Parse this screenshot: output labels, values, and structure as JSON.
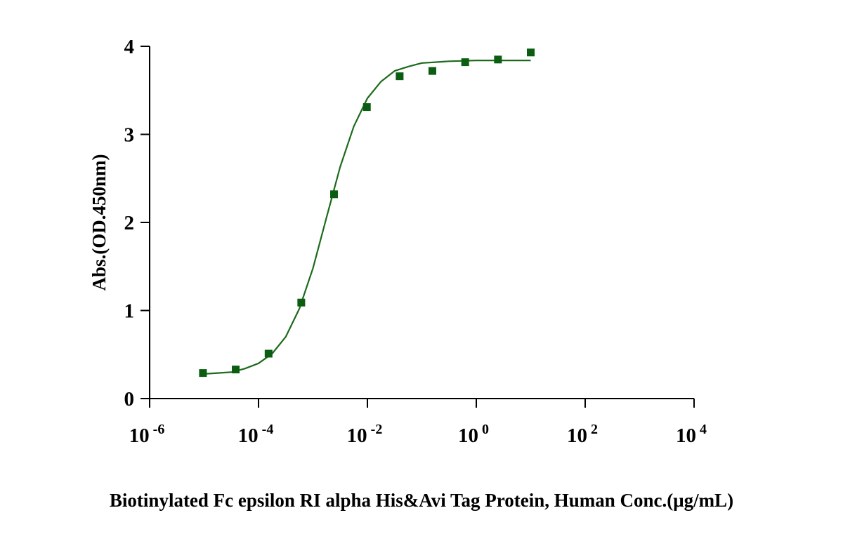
{
  "chart_data": {
    "type": "scatter",
    "x_label": "Biotinylated Fc epsilon RI alpha His&Avi Tag Protein, Human Conc.(μg/mL)",
    "y_label": "Abs.(OD.450nm)",
    "log_x": true,
    "xlim": [
      1e-06,
      10000
    ],
    "xticks": [
      {
        "value": 1e-06,
        "label": "10-6"
      },
      {
        "value": 0.0001,
        "label": "10-4"
      },
      {
        "value": 0.01,
        "label": "10-2"
      },
      {
        "value": 1,
        "label": "100"
      },
      {
        "value": 100,
        "label": "102"
      },
      {
        "value": 10000,
        "label": "104"
      }
    ],
    "ylim": [
      0,
      4
    ],
    "yticks": [
      0,
      1,
      2,
      3,
      4
    ],
    "series": [
      {
        "color": "#0b5d12",
        "marker": "square",
        "x": [
          9.54e-06,
          3.81e-05,
          0.000153,
          0.00061,
          0.00244,
          0.00977,
          0.0391,
          0.156,
          0.625,
          2.5,
          10
        ],
        "values": [
          0.29,
          0.33,
          0.51,
          1.09,
          2.32,
          3.31,
          3.66,
          3.72,
          3.82,
          3.85,
          3.93
        ]
      },
      {
        "color": "#1d6a1d",
        "marker": "line",
        "x": [
          1e-05,
          1.78e-05,
          3.16e-05,
          5.62e-05,
          0.0001,
          0.000178,
          0.000316,
          0.000562,
          0.001,
          0.00178,
          0.00316,
          0.00562,
          0.01,
          0.0178,
          0.0316,
          0.0562,
          0.1,
          0.178,
          0.316,
          1,
          3.16,
          10
        ],
        "values": [
          0.28,
          0.29,
          0.3,
          0.34,
          0.4,
          0.51,
          0.7,
          1.02,
          1.48,
          2.06,
          2.63,
          3.09,
          3.41,
          3.6,
          3.72,
          3.77,
          3.81,
          3.82,
          3.83,
          3.84,
          3.84,
          3.84
        ]
      }
    ]
  }
}
